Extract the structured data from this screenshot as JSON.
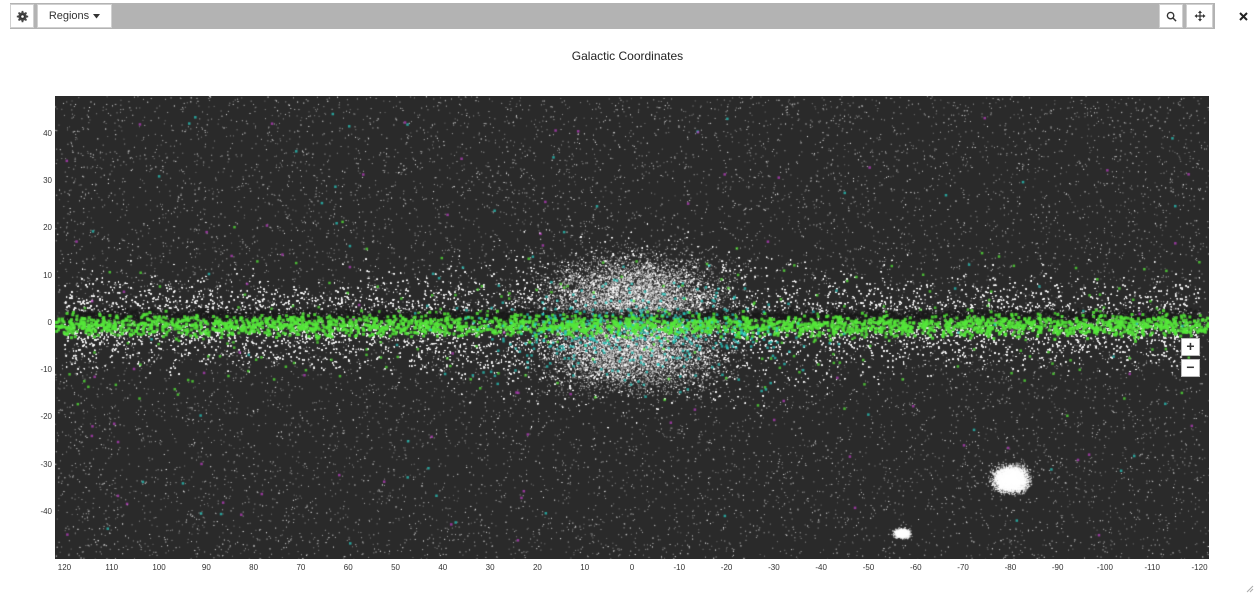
{
  "toolbar": {
    "regions_label": "Regions",
    "icons": [
      "gear-icon",
      "caret-down-icon",
      "search-icon",
      "move-icon",
      "close-icon"
    ]
  },
  "plot": {
    "title": "Galactic Coordinates",
    "y_ticks": [
      "40",
      "30",
      "20",
      "10",
      "0",
      "-10",
      "-20",
      "-30",
      "-40"
    ],
    "x_ticks": [
      "120",
      "110",
      "100",
      "90",
      "80",
      "70",
      "60",
      "50",
      "40",
      "30",
      "20",
      "10",
      "0",
      "-10",
      "-20",
      "-30",
      "-40",
      "-50",
      "-60",
      "-70",
      "-80",
      "-90",
      "-100",
      "-110",
      "-120"
    ],
    "x_range": [
      122,
      -122
    ],
    "y_range": [
      -50,
      48
    ]
  },
  "zoom": {
    "plus_label": "+",
    "minus_label": "−"
  },
  "colors": {
    "background": "#2a2a2a",
    "stars": "#ffffff",
    "green": "#55e83a",
    "cyan": "#2ad1c8",
    "magenta": "#c040c8"
  }
}
